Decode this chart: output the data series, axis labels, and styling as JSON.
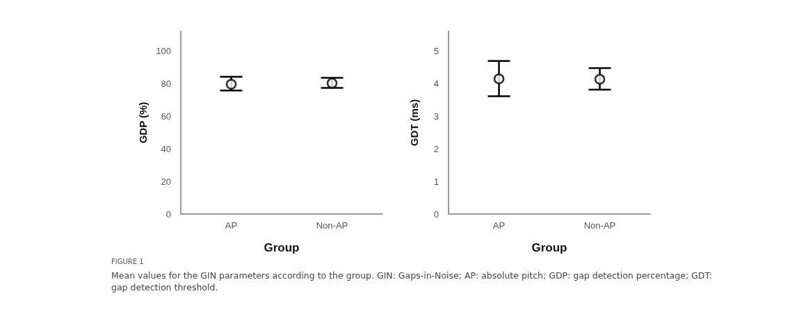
{
  "chart_data": [
    {
      "type": "scatter",
      "xlabel": "Group",
      "ylabel": "GDP (%)",
      "categories": [
        "AP",
        "Non-AP"
      ],
      "ylim": [
        0,
        112
      ],
      "yticks": [
        0,
        20,
        40,
        60,
        80,
        100
      ],
      "grid": false,
      "marker": "circle",
      "color": "#000000",
      "values": [
        79.5,
        80.2
      ],
      "errors": [
        [
          75.7,
          84.1
        ],
        [
          77.3,
          83.5
        ]
      ],
      "annotations": [
        "FIGURE 1",
        "Mean values for the GIN parameters according to the group. GIN: Gaps-in-Noise; AP: absolute pitch; GDP: gap detection percentage; GDT: gap detection threshold."
      ]
    },
    {
      "type": "scatter",
      "xlabel": "Group",
      "ylabel": "GDT (ms)",
      "categories": [
        "AP",
        "Non-AP"
      ],
      "ylim": [
        0,
        5.6
      ],
      "yticks": [
        0,
        1,
        2,
        3,
        4,
        5
      ],
      "grid": false,
      "marker": "circle",
      "color": "#000000",
      "values": [
        4.14,
        4.13
      ],
      "errors": [
        [
          3.61,
          4.69
        ],
        [
          3.81,
          4.47
        ]
      ]
    }
  ]
}
